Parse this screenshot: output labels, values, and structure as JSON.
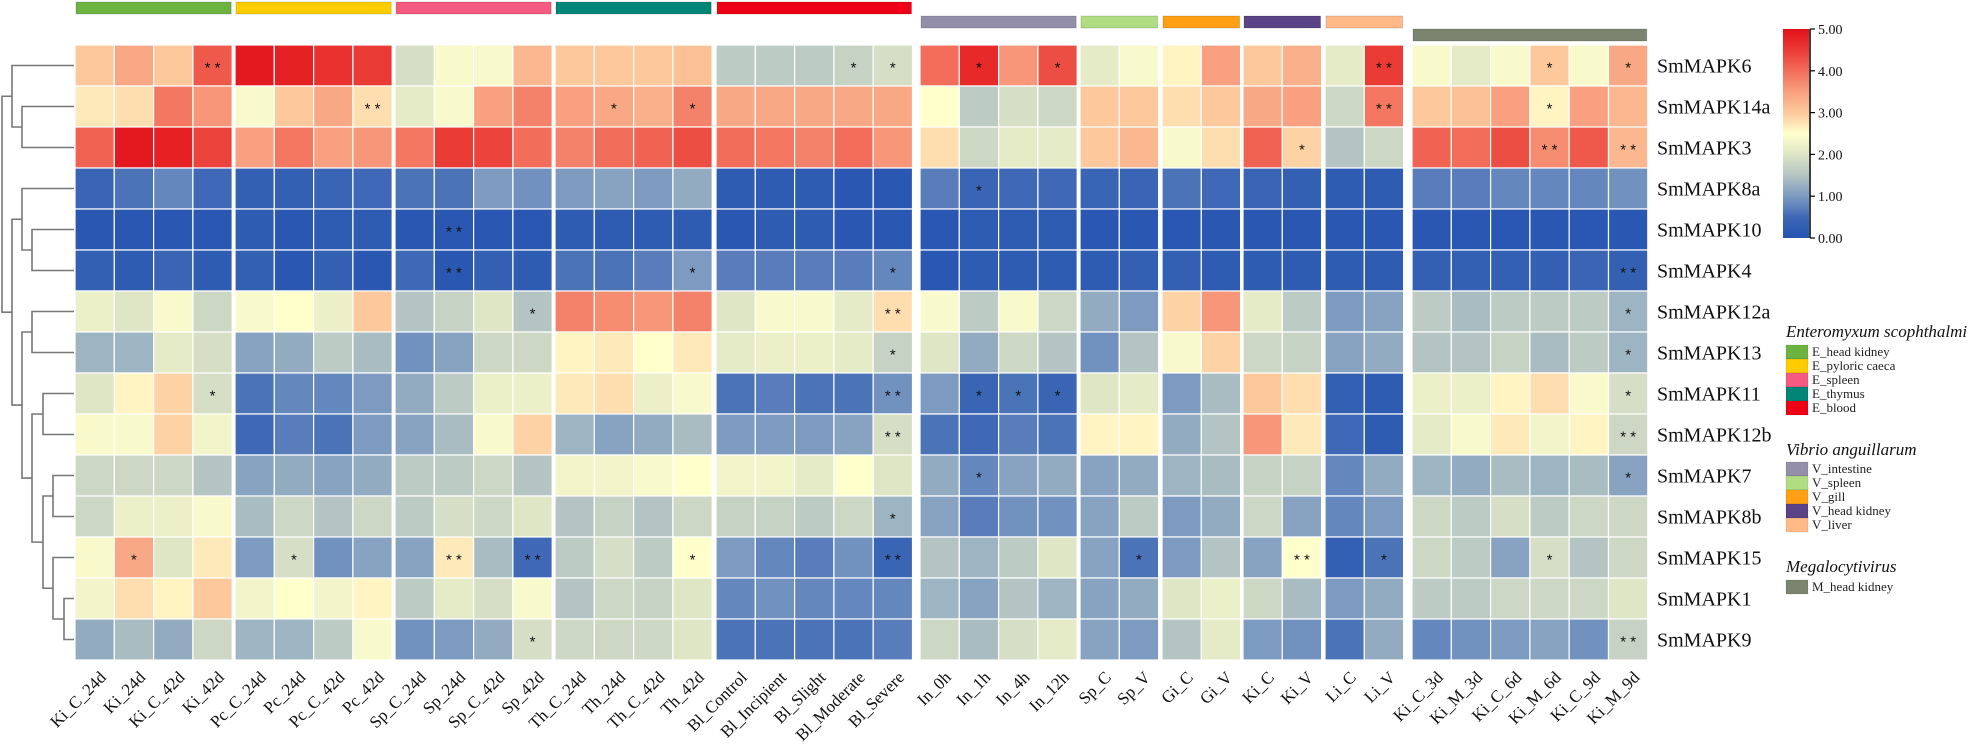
{
  "chart_data": {
    "type": "heatmap",
    "title": "",
    "value_range": [
      0,
      5
    ],
    "colorbar": {
      "ticks": [
        "0.00",
        "1.00",
        "2.00",
        "3.00",
        "4.00",
        "5.00"
      ],
      "stops": [
        {
          "v": 0.0,
          "c": "#2453b1"
        },
        {
          "v": 0.5,
          "c": "#3f69b6"
        },
        {
          "v": 1.0,
          "c": "#7d9bc1"
        },
        {
          "v": 1.5,
          "c": "#b3c4c2"
        },
        {
          "v": 2.0,
          "c": "#dfe6c6"
        },
        {
          "v": 2.5,
          "c": "#ffffcc"
        },
        {
          "v": 3.0,
          "c": "#fdc89c"
        },
        {
          "v": 3.5,
          "c": "#f8a07f"
        },
        {
          "v": 4.0,
          "c": "#f26d5a"
        },
        {
          "v": 4.5,
          "c": "#ea3a34"
        },
        {
          "v": 5.0,
          "c": "#e3101a"
        }
      ]
    },
    "columns": [
      "Ki_C_24d",
      "Ki_24d",
      "Ki_C_42d",
      "Ki_42d",
      "Pc_C_24d",
      "Pc_24d",
      "Pc_C_42d",
      "Pc_42d",
      "Sp_C_24d",
      "Sp_24d",
      "Sp_C_42d",
      "Sp_42d",
      "Th_C_24d",
      "Th_24d",
      "Th_C_42d",
      "Th_42d",
      "Bl_Control",
      "Bl_Incipient",
      "Bl_Slight",
      "Bl_Moderate",
      "Bl_Severe",
      "In_0h",
      "In_1h",
      "In_4h",
      "In_12h",
      "Sp_C",
      "Sp_V",
      "Gi_C",
      "Gi_V",
      "Ki_C",
      "Ki_V",
      "Li_C",
      "Li_V",
      "Ki_C_3d",
      "Ki_M_3d",
      "Ki_C_6d",
      "Ki_M_6d",
      "Ki_C_9d",
      "Ki_M_9d"
    ],
    "column_groups": [
      {
        "label": "E_head kidney",
        "color": "#6db33f",
        "cols": 4
      },
      {
        "label": "E_pyloric caeca",
        "color": "#ffcc00",
        "cols": 4
      },
      {
        "label": "E_spleen",
        "color": "#f55a80",
        "cols": 4
      },
      {
        "label": "E_thymus",
        "color": "#008577",
        "cols": 4
      },
      {
        "label": "E_blood",
        "color": "#ee0016",
        "cols": 5
      },
      {
        "label": "V_intestine",
        "color": "#938fa9",
        "cols": 4
      },
      {
        "label": "V_spleen",
        "color": "#b0dc82",
        "cols": 2
      },
      {
        "label": "V_gill",
        "color": "#ff9f14",
        "cols": 2
      },
      {
        "label": "V_head kidney",
        "color": "#5a4386",
        "cols": 2
      },
      {
        "label": "V_liver",
        "color": "#ffba88",
        "cols": 2
      },
      {
        "label": "M_head kidney",
        "color": "#7a846e",
        "cols": 6
      }
    ],
    "legend": [
      {
        "title": "Enteromyxum scophthalmi",
        "items": [
          0,
          1,
          2,
          3,
          4
        ]
      },
      {
        "title": "Vibrio anguillarum",
        "items": [
          5,
          6,
          7,
          8,
          9
        ]
      },
      {
        "title": "Megalocytivirus",
        "items": [
          10
        ]
      }
    ],
    "rows": [
      {
        "name": "SmMAPK6",
        "values": [
          3.0,
          3.4,
          3.0,
          4.2,
          4.9,
          4.8,
          4.6,
          4.5,
          1.9,
          2.4,
          2.4,
          3.2,
          3.0,
          3.0,
          3.0,
          3.1,
          1.6,
          1.6,
          1.6,
          1.7,
          1.9,
          4.0,
          4.7,
          3.6,
          4.3,
          2.1,
          2.4,
          2.6,
          3.5,
          3.0,
          3.3,
          2.1,
          4.5,
          2.4,
          2.1,
          2.4,
          3.0,
          2.4,
          3.4
        ],
        "sig": {
          "3": "* *",
          "19": "*",
          "20": "*",
          "22": "*",
          "24": "*",
          "32": "* *",
          "36": "*",
          "38": "*"
        }
      },
      {
        "name": "SmMAPK14a",
        "values": [
          2.7,
          2.8,
          3.9,
          3.6,
          2.4,
          3.0,
          3.4,
          2.8,
          2.1,
          2.4,
          3.5,
          3.8,
          3.5,
          3.4,
          3.3,
          3.8,
          3.4,
          3.4,
          3.4,
          3.4,
          3.4,
          2.5,
          1.6,
          1.9,
          1.8,
          3.0,
          3.0,
          2.8,
          3.0,
          3.4,
          3.5,
          1.8,
          3.9,
          3.0,
          3.1,
          3.5,
          2.6,
          3.5,
          3.2
        ],
        "sig": {
          "7": "* *",
          "13": "*",
          "15": "*",
          "32": "* *",
          "36": "*"
        }
      },
      {
        "name": "SmMAPK3",
        "values": [
          4.1,
          4.9,
          4.8,
          4.4,
          3.5,
          3.9,
          3.5,
          3.6,
          3.9,
          4.5,
          4.4,
          4.0,
          3.8,
          4.0,
          4.1,
          4.3,
          4.0,
          3.9,
          3.8,
          4.0,
          3.6,
          2.8,
          1.8,
          2.1,
          2.1,
          3.0,
          3.2,
          2.4,
          2.8,
          4.1,
          2.9,
          1.5,
          1.8,
          4.1,
          4.0,
          4.3,
          3.7,
          4.2,
          3.2
        ],
        "sig": {
          "30": "*",
          "36": "* *",
          "38": "* *"
        }
      },
      {
        "name": "SmMAPK8a",
        "values": [
          0.4,
          0.6,
          0.8,
          0.5,
          0.3,
          0.3,
          0.4,
          0.5,
          0.6,
          0.6,
          1.0,
          0.9,
          1.0,
          1.1,
          1.0,
          1.2,
          0.2,
          0.2,
          0.2,
          0.1,
          0.1,
          0.7,
          0.4,
          0.5,
          0.5,
          0.4,
          0.4,
          0.6,
          0.5,
          0.4,
          0.3,
          0.2,
          0.2,
          0.7,
          0.7,
          0.8,
          0.8,
          0.8,
          0.9
        ],
        "sig": {
          "22": "*"
        }
      },
      {
        "name": "SmMAPK10",
        "values": [
          0.1,
          0.1,
          0.1,
          0.1,
          0.2,
          0.1,
          0.2,
          0.2,
          0.1,
          0.1,
          0.1,
          0.1,
          0.2,
          0.2,
          0.2,
          0.2,
          0.1,
          0.2,
          0.2,
          0.1,
          0.1,
          0.1,
          0.2,
          0.2,
          0.2,
          0.1,
          0.1,
          0.1,
          0.1,
          0.1,
          0.1,
          0.1,
          0.1,
          0.1,
          0.1,
          0.1,
          0.1,
          0.1,
          0.1
        ],
        "sig": {
          "9": "* *"
        }
      },
      {
        "name": "SmMAPK4",
        "values": [
          0.3,
          0.2,
          0.4,
          0.2,
          0.3,
          0.1,
          0.3,
          0.1,
          0.5,
          0.1,
          0.3,
          0.2,
          0.6,
          0.6,
          0.7,
          1.0,
          0.7,
          0.7,
          0.7,
          0.7,
          0.8,
          0.1,
          0.2,
          0.2,
          0.2,
          0.2,
          0.3,
          0.3,
          0.2,
          0.2,
          0.2,
          0.2,
          0.2,
          0.3,
          0.3,
          0.3,
          0.3,
          0.4,
          0.3
        ],
        "sig": {
          "9": "* *",
          "15": "*",
          "20": "*",
          "38": "* *"
        }
      },
      {
        "name": "SmMAPK12a",
        "values": [
          2.2,
          2.0,
          2.4,
          1.8,
          2.4,
          2.5,
          2.2,
          3.0,
          1.5,
          1.7,
          2.0,
          1.5,
          3.8,
          3.7,
          3.6,
          3.8,
          2.0,
          2.4,
          2.4,
          2.1,
          2.8,
          2.4,
          1.6,
          2.4,
          1.8,
          1.2,
          1.0,
          2.9,
          3.6,
          2.1,
          1.6,
          1.0,
          1.1,
          1.6,
          1.4,
          1.6,
          1.6,
          1.6,
          1.3
        ],
        "sig": {
          "11": "*",
          "20": "* *",
          "38": "*"
        }
      },
      {
        "name": "SmMAPK13",
        "values": [
          1.3,
          1.3,
          2.1,
          1.9,
          1.1,
          1.2,
          1.6,
          1.4,
          0.9,
          1.1,
          1.8,
          1.8,
          2.6,
          2.7,
          2.5,
          2.7,
          2.1,
          2.2,
          2.2,
          2.1,
          1.7,
          2.0,
          1.2,
          1.8,
          1.5,
          0.9,
          1.5,
          2.4,
          2.9,
          1.8,
          1.7,
          1.1,
          1.2,
          1.5,
          1.5,
          1.7,
          1.4,
          1.6,
          1.3
        ],
        "sig": {
          "20": "*",
          "38": "*"
        }
      },
      {
        "name": "SmMAPK11",
        "values": [
          2.0,
          2.6,
          2.9,
          1.9,
          0.6,
          0.8,
          0.8,
          1.0,
          1.2,
          1.6,
          2.2,
          2.2,
          2.7,
          2.8,
          2.2,
          2.4,
          0.6,
          0.7,
          0.6,
          0.6,
          0.9,
          1.0,
          0.4,
          0.6,
          0.4,
          2.0,
          2.1,
          1.0,
          1.4,
          3.0,
          2.8,
          0.3,
          0.2,
          2.2,
          2.2,
          2.6,
          2.8,
          2.4,
          1.9
        ],
        "sig": {
          "3": "*",
          "20": "* *",
          "22": "*",
          "23": "*",
          "24": "*",
          "38": "*"
        }
      },
      {
        "name": "SmMAPK12b",
        "values": [
          2.4,
          2.4,
          2.9,
          2.3,
          0.5,
          0.7,
          0.6,
          1.0,
          1.1,
          1.4,
          2.4,
          2.9,
          1.3,
          1.1,
          1.2,
          1.4,
          1.0,
          1.0,
          1.0,
          1.1,
          1.9,
          0.6,
          0.5,
          0.7,
          0.6,
          2.6,
          2.6,
          1.2,
          1.5,
          3.6,
          2.7,
          0.5,
          0.2,
          2.1,
          2.4,
          2.7,
          2.3,
          2.6,
          1.8
        ],
        "sig": {
          "20": "* *",
          "38": "* *"
        }
      },
      {
        "name": "SmMAPK7",
        "values": [
          1.8,
          1.8,
          1.8,
          1.5,
          1.1,
          1.2,
          1.1,
          1.2,
          1.6,
          1.6,
          1.8,
          1.5,
          2.3,
          2.3,
          2.4,
          2.5,
          2.3,
          2.3,
          2.1,
          2.5,
          2.0,
          1.2,
          0.8,
          1.1,
          1.2,
          1.1,
          1.2,
          1.3,
          1.4,
          1.7,
          1.7,
          0.8,
          1.2,
          1.3,
          1.2,
          1.4,
          1.3,
          1.4,
          1.1
        ],
        "sig": {
          "22": "*",
          "38": "*"
        }
      },
      {
        "name": "SmMAPK8b",
        "values": [
          1.8,
          2.2,
          2.2,
          2.4,
          1.4,
          1.8,
          1.5,
          1.8,
          1.6,
          1.9,
          1.8,
          2.0,
          1.5,
          1.7,
          1.5,
          1.8,
          1.7,
          1.7,
          1.6,
          1.8,
          1.3,
          1.1,
          0.7,
          0.9,
          0.9,
          1.1,
          1.6,
          1.0,
          1.2,
          1.8,
          1.1,
          0.8,
          1.0,
          1.8,
          1.6,
          1.9,
          1.6,
          1.8,
          1.8
        ],
        "sig": {
          "20": "*"
        }
      },
      {
        "name": "SmMAPK15",
        "values": [
          2.4,
          3.4,
          2.0,
          2.7,
          1.0,
          1.9,
          0.9,
          1.1,
          1.1,
          2.7,
          1.4,
          0.5,
          1.6,
          1.9,
          1.6,
          2.5,
          1.0,
          0.8,
          0.7,
          0.9,
          0.4,
          1.5,
          1.3,
          1.6,
          2.0,
          1.1,
          0.6,
          1.0,
          1.5,
          1.1,
          2.5,
          0.3,
          0.6,
          1.8,
          1.6,
          1.1,
          1.9,
          1.5,
          1.8
        ],
        "sig": {
          "1": "*",
          "5": "*",
          "9": "* *",
          "11": "* *",
          "15": "*",
          "20": "* *",
          "26": "*",
          "30": "* *",
          "32": "*",
          "36": "*"
        }
      },
      {
        "name": "SmMAPK1",
        "values": [
          2.3,
          2.8,
          2.6,
          3.0,
          2.3,
          2.5,
          2.3,
          2.6,
          1.6,
          2.1,
          1.9,
          2.4,
          1.5,
          1.8,
          1.7,
          2.0,
          0.8,
          0.9,
          0.8,
          0.8,
          0.8,
          1.3,
          1.1,
          1.5,
          1.3,
          1.1,
          1.2,
          2.0,
          2.2,
          1.8,
          1.4,
          1.0,
          1.2,
          1.6,
          1.6,
          1.8,
          1.8,
          1.8,
          2.0
        ],
        "sig": {}
      },
      {
        "name": "SmMAPK9",
        "values": [
          1.2,
          1.4,
          1.2,
          1.8,
          1.3,
          1.3,
          1.6,
          2.4,
          0.9,
          1.0,
          1.2,
          1.9,
          1.8,
          1.8,
          1.8,
          2.0,
          0.6,
          0.6,
          0.6,
          0.6,
          0.7,
          1.8,
          1.4,
          1.9,
          2.1,
          1.1,
          1.0,
          1.5,
          2.1,
          1.0,
          0.9,
          0.6,
          1.2,
          0.8,
          0.9,
          1.0,
          1.1,
          0.9,
          1.7
        ],
        "sig": {
          "11": "*",
          "38": "* *"
        }
      }
    ]
  }
}
